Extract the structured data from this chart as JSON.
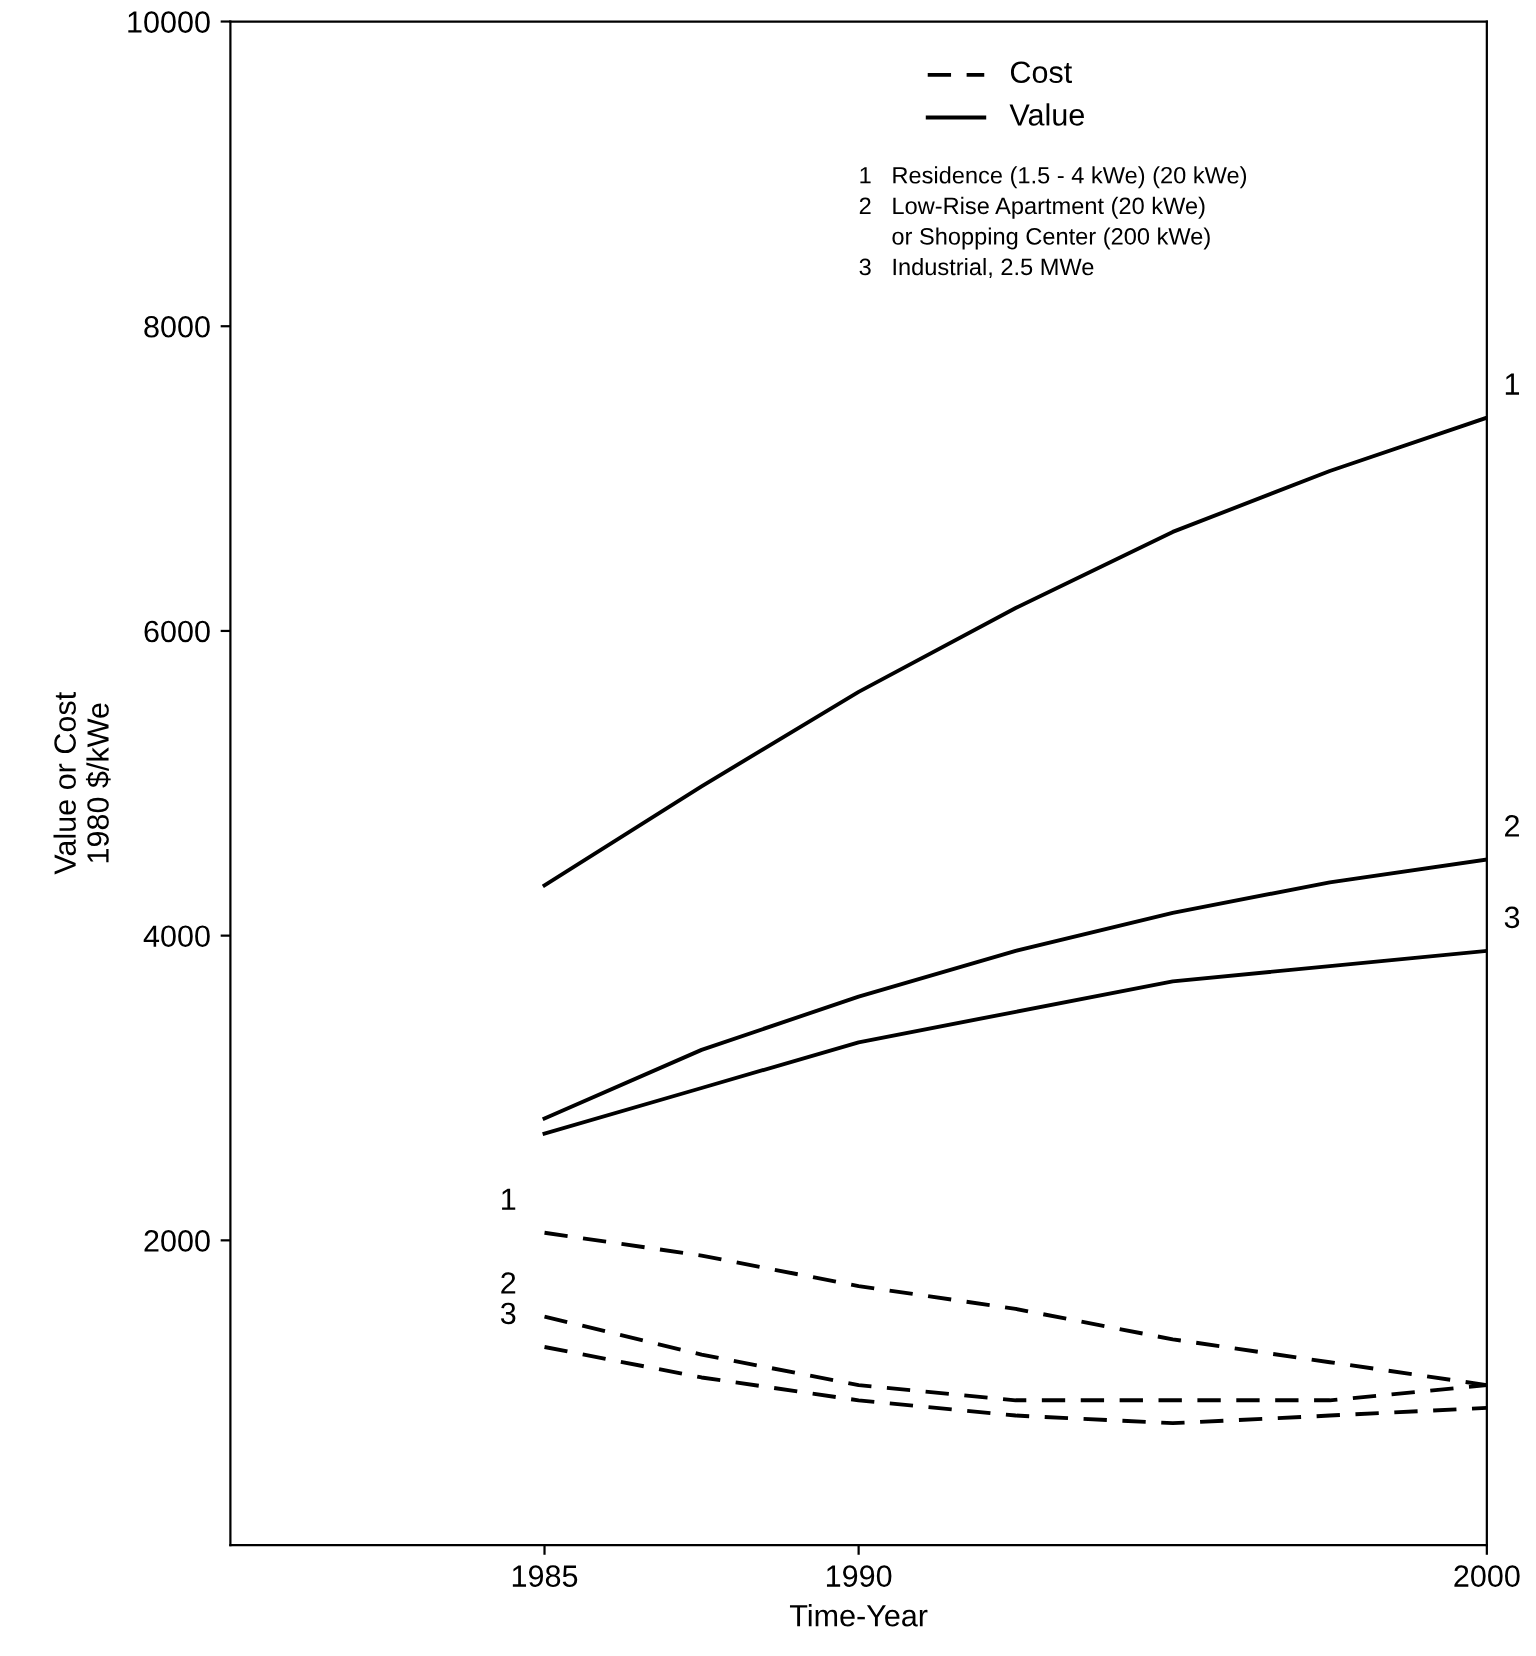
{
  "chart_data": {
    "type": "line",
    "xlabel": "Time-Year",
    "ylabel": "Value or Cost\n1980 $/kWe",
    "x": [
      1985,
      1987.5,
      1990,
      1992.5,
      1995,
      1997.5,
      2000
    ],
    "series": [
      {
        "name": "1",
        "color": "#000000",
        "line_style": "solid",
        "values": [
          4330,
          4980,
          5600,
          6150,
          6650,
          7050,
          7400
        ]
      },
      {
        "name": "2",
        "color": "#000000",
        "line_style": "solid",
        "values": [
          2800,
          3250,
          3600,
          3900,
          4150,
          4350,
          4500
        ]
      },
      {
        "name": "3",
        "color": "#000000",
        "line_style": "solid",
        "values": [
          2700,
          3000,
          3300,
          3500,
          3700,
          3800,
          3900
        ]
      },
      {
        "name": "1",
        "color": "#000000",
        "line_style": "dashed",
        "values": [
          2050,
          1900,
          1700,
          1550,
          1350,
          1200,
          1050
        ]
      },
      {
        "name": "2",
        "color": "#000000",
        "line_style": "dashed",
        "values": [
          1500,
          1250,
          1050,
          950,
          950,
          950,
          1050
        ]
      },
      {
        "name": "3",
        "color": "#000000",
        "line_style": "dashed",
        "values": [
          1300,
          1100,
          950,
          850,
          800,
          850,
          900
        ]
      }
    ],
    "xlim": [
      1980,
      2000
    ],
    "xticks": [
      1985,
      1990,
      2000
    ],
    "ylim": [
      0,
      10000
    ],
    "yticks": [
      2000,
      4000,
      6000,
      8000,
      10000
    ],
    "grid": false,
    "marker": "none",
    "annotations": [
      "Cost",
      "Value",
      "1   Residence (1.5 - 4 kWe) (20 kWe)\n2   Low-Rise Apartment (20 kWe)\n     or Shopping Center (200 kWe)\n3   Industrial, 2.5 MWe"
    ]
  }
}
